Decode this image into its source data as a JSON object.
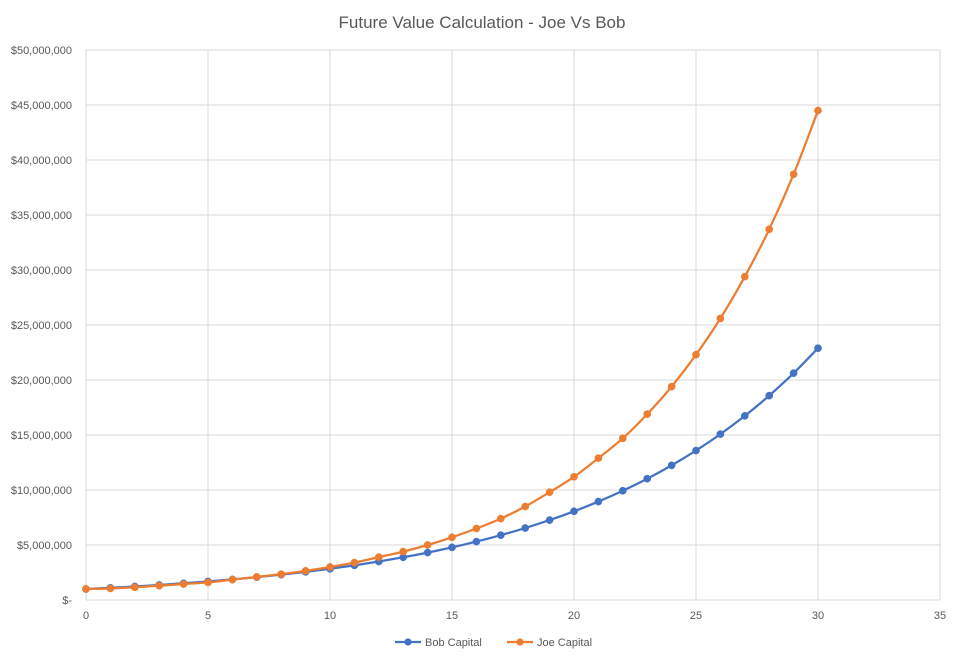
{
  "chart_data": {
    "type": "scatter",
    "title": "Future Value Calculation - Joe Vs Bob",
    "xlabel": "",
    "ylabel": "",
    "xlim": [
      0,
      35
    ],
    "ylim": [
      0,
      50000000
    ],
    "x_ticks": [
      "0",
      "5",
      "10",
      "15",
      "20",
      "25",
      "30",
      "35"
    ],
    "y_ticks": [
      "$-",
      "$5,000,000",
      "$10,000,000",
      "$15,000,000",
      "$20,000,000",
      "$25,000,000",
      "$30,000,000",
      "$35,000,000",
      "$40,000,000",
      "$45,000,000",
      "$50,000,000"
    ],
    "grid": true,
    "legend_position": "bottom",
    "line_style": "smoothed lines with markers",
    "series": [
      {
        "name": "Bob Capital",
        "color": "#4472c4",
        "x": [
          0,
          1,
          2,
          3,
          4,
          5,
          6,
          7,
          8,
          9,
          10,
          11,
          12,
          13,
          14,
          15,
          16,
          17,
          18,
          19,
          20,
          21,
          22,
          23,
          24,
          25,
          26,
          27,
          28,
          29,
          30
        ],
        "values": [
          1000000,
          1110000,
          1232100,
          1367631,
          1518070,
          1685058,
          1870415,
          2076160,
          2304538,
          2558037,
          2839421,
          3151757,
          3498451,
          3883280,
          4310441,
          4784589,
          5310894,
          5895093,
          6543553,
          7263344,
          8062312,
          8949166,
          9933574,
          11026267,
          12239157,
          13585464,
          15079865,
          16738650,
          18579901,
          20623691,
          22892297
        ]
      },
      {
        "name": "Joe Capital",
        "color": "#ed7d31",
        "x": [
          0,
          1,
          2,
          3,
          4,
          5,
          6,
          7,
          8,
          9,
          10,
          11,
          12,
          13,
          14,
          15,
          16,
          17,
          18,
          19,
          20,
          21,
          22,
          23,
          24,
          25,
          26,
          27,
          28,
          29,
          30
        ],
        "values": [
          1000000,
          1050000,
          1155000,
          1300000,
          1450000,
          1600000,
          1850000,
          2100000,
          2350000,
          2650000,
          3000000,
          3400000,
          3900000,
          4400000,
          5000000,
          5700000,
          6500000,
          7400000,
          8500000,
          9800000,
          11200000,
          12900000,
          14700000,
          16900000,
          19400000,
          22300000,
          25600000,
          29400000,
          33700000,
          38700000,
          44500000
        ]
      }
    ]
  }
}
